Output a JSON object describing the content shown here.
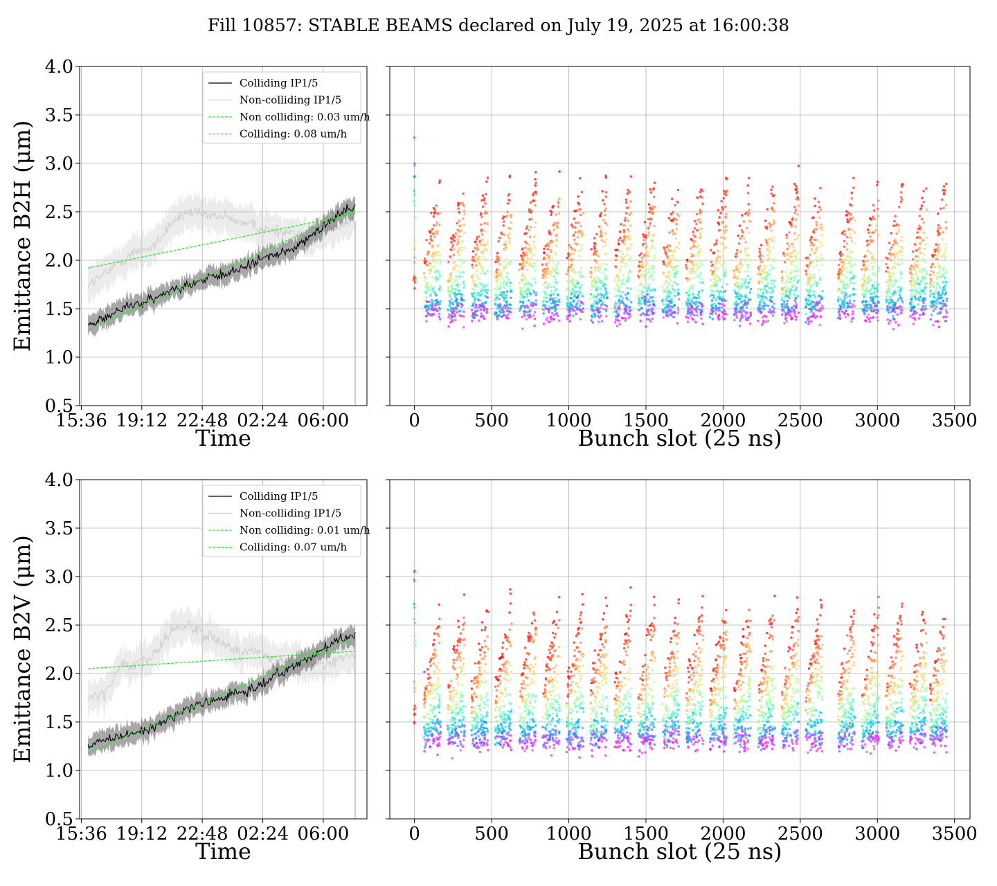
{
  "suptitle": "Fill 10857: STABLE BEAMS declared on July 19, 2025 at 16:00:38",
  "chart_data": [
    {
      "type": "line",
      "panel": "top-left",
      "xlabel": "Time",
      "ylabel": "Emittance B2H (μm)",
      "ylim": [
        0.5,
        4.0
      ],
      "yticks": [
        "0.5",
        "1.0",
        "1.5",
        "2.0",
        "2.5",
        "3.0",
        "3.5",
        "4.0"
      ],
      "xticks": [
        "15:36",
        "19:12",
        "22:48",
        "02:24",
        "06:00"
      ],
      "xtick_hours": [
        15.6,
        19.2,
        22.8,
        26.4,
        30.0
      ],
      "xlim_hours": [
        15.5,
        32.6
      ],
      "grid": true,
      "legend": "upper-right",
      "legend_entries": [
        "Colliding IP1/5",
        "Non-colliding IP1/5",
        "Non colliding: 0.03 um/h",
        "Colliding: 0.08 um/h"
      ],
      "series": [
        {
          "name": "Colliding IP1/5",
          "x": [
            16.0,
            17.0,
            18.0,
            19.0,
            20.0,
            21.0,
            22.0,
            23.0,
            24.0,
            25.0,
            26.0,
            27.0,
            28.0,
            29.0,
            30.0,
            31.0,
            31.9
          ],
          "values": [
            1.35,
            1.4,
            1.5,
            1.55,
            1.6,
            1.7,
            1.75,
            1.8,
            1.85,
            1.9,
            2.0,
            2.05,
            2.1,
            2.2,
            2.35,
            2.5,
            2.55
          ]
        },
        {
          "name": "Non-colliding IP1/5",
          "x": [
            16.0,
            17.0,
            18.0,
            19.0,
            20.0,
            21.0,
            22.0,
            23.0,
            24.0,
            25.0,
            26.0,
            27.0,
            28.0,
            29.0,
            30.0,
            31.0,
            31.9
          ],
          "values": [
            1.75,
            1.85,
            2.0,
            2.1,
            2.15,
            2.4,
            2.5,
            2.45,
            2.45,
            2.4,
            2.35,
            2.3,
            2.3,
            2.25,
            2.3,
            2.35,
            2.4
          ]
        },
        {
          "name": "Non colliding: 0.03 um/h",
          "x": [
            16.0,
            31.9
          ],
          "values": [
            1.92,
            2.48
          ]
        },
        {
          "name": "Colliding: 0.08 um/h",
          "x": [
            16.0,
            31.9
          ],
          "values": [
            1.28,
            2.52
          ]
        }
      ]
    },
    {
      "type": "scatter",
      "panel": "top-right",
      "xlabel": "Bunch slot (25 ns)",
      "xlim": [
        -160,
        3600
      ],
      "ylim": [
        0.5,
        4.0
      ],
      "xticks": [
        "0",
        "500",
        "1000",
        "1500",
        "2000",
        "2500",
        "3000",
        "3500"
      ],
      "colormap": "rainbow (color by time)",
      "grid": true,
      "trains_start_slot": [
        60,
        215,
        370,
        520,
        680,
        830,
        985,
        1140,
        1295,
        1450,
        1605,
        1760,
        1915,
        2070,
        2225,
        2380,
        2535,
        2745,
        2900,
        3055,
        3210,
        3340
      ],
      "level_start_um": 1.45,
      "level_peak_um": 2.95
    },
    {
      "type": "line",
      "panel": "bottom-left",
      "xlabel": "Time",
      "ylabel": "Emittance B2V (μm)",
      "ylim": [
        0.5,
        4.0
      ],
      "yticks": [
        "0.5",
        "1.0",
        "1.5",
        "2.0",
        "2.5",
        "3.0",
        "3.5",
        "4.0"
      ],
      "xticks": [
        "15:36",
        "19:12",
        "22:48",
        "02:24",
        "06:00"
      ],
      "xtick_hours": [
        15.6,
        19.2,
        22.8,
        26.4,
        30.0
      ],
      "xlim_hours": [
        15.5,
        32.6
      ],
      "grid": true,
      "legend": "upper-right",
      "legend_entries": [
        "Colliding IP1/5",
        "Non-colliding IP1/5",
        "Non colliding: 0.01 um/h",
        "Colliding: 0.07 um/h"
      ],
      "series": [
        {
          "name": "Colliding IP1/5",
          "x": [
            16.0,
            17.0,
            18.0,
            19.0,
            20.0,
            21.0,
            22.0,
            23.0,
            24.0,
            25.0,
            26.0,
            27.0,
            28.0,
            29.0,
            30.0,
            31.0,
            31.9
          ],
          "values": [
            1.25,
            1.3,
            1.35,
            1.4,
            1.45,
            1.55,
            1.65,
            1.7,
            1.75,
            1.8,
            1.85,
            1.95,
            2.05,
            2.15,
            2.25,
            2.35,
            2.4
          ]
        },
        {
          "name": "Non-colliding IP1/5",
          "x": [
            16.0,
            17.0,
            18.0,
            19.0,
            20.0,
            21.0,
            22.0,
            23.0,
            24.0,
            25.0,
            26.0,
            27.0,
            28.0,
            29.0,
            30.0,
            31.0,
            31.9
          ],
          "values": [
            1.75,
            1.8,
            2.1,
            2.1,
            2.2,
            2.45,
            2.5,
            2.4,
            2.3,
            2.2,
            2.25,
            2.15,
            2.15,
            2.1,
            2.1,
            2.15,
            2.2
          ]
        },
        {
          "name": "Non colliding: 0.01 um/h",
          "x": [
            16.0,
            31.9
          ],
          "values": [
            2.05,
            2.23
          ]
        },
        {
          "name": "Colliding: 0.07 um/h",
          "x": [
            16.0,
            31.9
          ],
          "values": [
            1.18,
            2.38
          ]
        }
      ]
    },
    {
      "type": "scatter",
      "panel": "bottom-right",
      "xlabel": "Bunch slot (25 ns)",
      "xlim": [
        -160,
        3600
      ],
      "ylim": [
        0.5,
        4.0
      ],
      "xticks": [
        "0",
        "500",
        "1000",
        "1500",
        "2000",
        "2500",
        "3000",
        "3500"
      ],
      "colormap": "rainbow (color by time)",
      "grid": true,
      "trains_start_slot": [
        60,
        215,
        370,
        520,
        680,
        830,
        985,
        1140,
        1295,
        1450,
        1605,
        1760,
        1915,
        2070,
        2225,
        2380,
        2535,
        2745,
        2900,
        3055,
        3210,
        3340
      ],
      "level_start_um": 1.3,
      "level_peak_um": 2.85
    }
  ]
}
